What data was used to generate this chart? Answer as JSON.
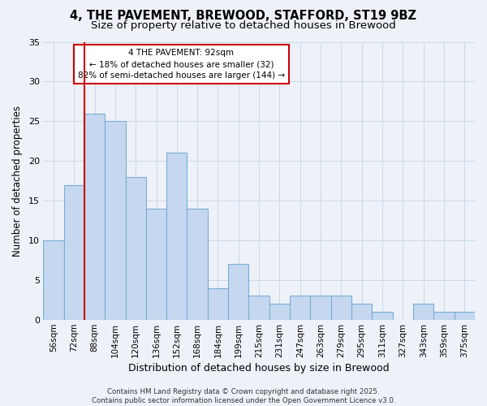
{
  "title_line1": "4, THE PAVEMENT, BREWOOD, STAFFORD, ST19 9BZ",
  "title_line2": "Size of property relative to detached houses in Brewood",
  "xlabel": "Distribution of detached houses by size in Brewood",
  "ylabel": "Number of detached properties",
  "categories": [
    "56sqm",
    "72sqm",
    "88sqm",
    "104sqm",
    "120sqm",
    "136sqm",
    "152sqm",
    "168sqm",
    "184sqm",
    "199sqm",
    "215sqm",
    "231sqm",
    "247sqm",
    "263sqm",
    "279sqm",
    "295sqm",
    "311sqm",
    "327sqm",
    "343sqm",
    "359sqm",
    "375sqm"
  ],
  "values": [
    10,
    17,
    26,
    25,
    18,
    14,
    21,
    14,
    4,
    7,
    3,
    2,
    3,
    3,
    3,
    2,
    1,
    0,
    2,
    1,
    1
  ],
  "bar_color": "#c5d8f0",
  "bar_edge_color": "#7aadd4",
  "grid_color": "#c8d8ea",
  "background_color": "#eef2f8",
  "vline_color": "#cc0000",
  "vline_bin_index": 2,
  "annotation_label": "4 THE PAVEMENT: 92sqm",
  "annotation_smaller": "← 18% of detached houses are smaller (32)",
  "annotation_larger": "82% of semi-detached houses are larger (144) →",
  "ylim": [
    0,
    35
  ],
  "yticks": [
    0,
    5,
    10,
    15,
    20,
    25,
    30,
    35
  ],
  "footer_line1": "Contains HM Land Registry data © Crown copyright and database right 2025.",
  "footer_line2": "Contains public sector information licensed under the Open Government Licence v3.0."
}
